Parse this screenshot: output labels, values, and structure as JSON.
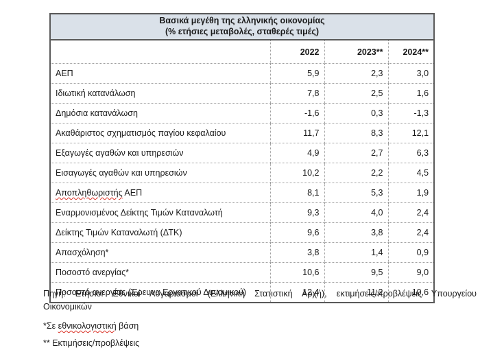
{
  "table": {
    "title_line1": "Βασικά μεγέθη της ελληνικής οικονομίας",
    "title_line2": "(% ετήσιες μεταβολές, σταθερές τιμές)",
    "columns": [
      "2022",
      "2023**",
      "2024**"
    ],
    "rows": [
      {
        "label": "ΑΕΠ",
        "values": [
          "5,9",
          "2,3",
          "3,0"
        ]
      },
      {
        "label": "Ιδιωτική κατανάλωση",
        "values": [
          "7,8",
          "2,5",
          "1,6"
        ]
      },
      {
        "label": "Δημόσια κατανάλωση",
        "values": [
          "-1,6",
          "0,3",
          "-1,3"
        ]
      },
      {
        "label": "Ακαθάριστος σχηματισμός παγίου κεφαλαίου",
        "values": [
          "11,7",
          "8,3",
          "12,1"
        ]
      },
      {
        "label": "Εξαγωγές αγαθών και υπηρεσιών",
        "values": [
          "4,9",
          "2,7",
          "6,3"
        ]
      },
      {
        "label": "Εισαγωγές αγαθών και υπηρεσιών",
        "values": [
          "10,2",
          "2,2",
          "4,5"
        ]
      },
      {
        "label_spellcheck": "Αποπληθωριστής",
        "label_rest": " ΑΕΠ",
        "values": [
          "8,1",
          "5,3",
          "1,9"
        ]
      },
      {
        "label": "Εναρμονισμένος Δείκτης Τιμών Καταναλωτή",
        "values": [
          "9,3",
          "4,0",
          "2,4"
        ]
      },
      {
        "label": "Δείκτης Τιμών Καταναλωτή (ΔΤΚ)",
        "values": [
          "9,6",
          "3,8",
          "2,4"
        ]
      },
      {
        "label": "Απασχόληση*",
        "values": [
          "3,8",
          "1,4",
          "0,9"
        ]
      },
      {
        "label": "Ποσοστό ανεργίας*",
        "values": [
          "10,6",
          "9,5",
          "9,0"
        ]
      },
      {
        "label": "Ποσοστό ανεργίας (Έρευνα Εργατικού Δυναμικού)",
        "values": [
          "12,4",
          "11,2",
          "10,6"
        ]
      }
    ],
    "colors": {
      "header_fill": "#dae1e9",
      "solid_border": "#595959",
      "dotted_border": "#9d9d9d",
      "spellcheck_underline": "#d93025"
    }
  },
  "footer": {
    "source_line1": "Πηγή: Ετήσιοι Εθνικοί Λογαριασμοί (Ελληνική Στατιστική Αρχή), εκτιμήσεις/προβλέψεις Υπουργείου",
    "source_line2": "Οικονομικών",
    "note1_prefix": "*Σε ",
    "note1_spellcheck": "εθνικολογιστική",
    "note1_suffix": " βάση",
    "note2": "** Εκτιμήσεις/προβλέψεις"
  }
}
